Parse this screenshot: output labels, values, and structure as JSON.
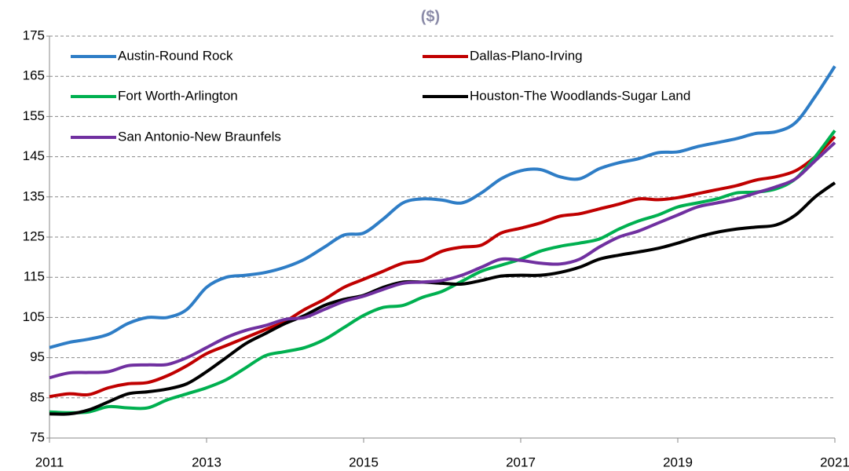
{
  "chart_data": {
    "type": "line",
    "title": "($)",
    "x": [
      2011,
      2011.25,
      2011.5,
      2011.75,
      2012,
      2012.25,
      2012.5,
      2012.75,
      2013,
      2013.25,
      2013.5,
      2013.75,
      2014,
      2014.25,
      2014.5,
      2014.75,
      2015,
      2015.25,
      2015.5,
      2015.75,
      2016,
      2016.25,
      2016.5,
      2016.75,
      2017,
      2017.25,
      2017.5,
      2017.75,
      2018,
      2018.25,
      2018.5,
      2018.75,
      2019,
      2019.25,
      2019.5,
      2019.75,
      2020,
      2020.25,
      2020.5,
      2020.75,
      2021
    ],
    "series": [
      {
        "name": "Austin-Round Rock",
        "color": "#2e7dc6",
        "values": [
          97.5,
          98.8,
          99.6,
          100.8,
          103.5,
          105,
          105,
          107,
          112.5,
          115,
          115.5,
          116.2,
          117.5,
          119.5,
          122.5,
          125.5,
          126,
          129.5,
          133.5,
          134.5,
          134.2,
          133.5,
          136,
          139.5,
          141.5,
          141.8,
          140,
          139.5,
          142,
          143.5,
          144.5,
          146,
          146.2,
          147.5,
          148.5,
          149.5,
          150.8,
          151.2,
          153.5,
          160,
          167.5
        ]
      },
      {
        "name": "Dallas-Plano-Irving",
        "color": "#c00000",
        "values": [
          85.3,
          86,
          85.8,
          87.5,
          88.5,
          88.8,
          90.5,
          93,
          96,
          98,
          100,
          102,
          104,
          107,
          109.5,
          112.5,
          114.5,
          116.5,
          118.5,
          119.2,
          121.5,
          122.5,
          123,
          126,
          127.2,
          128.5,
          130.2,
          130.8,
          132,
          133.2,
          134.5,
          134.3,
          134.8,
          135.8,
          136.8,
          137.8,
          139.2,
          140,
          141.5,
          145,
          150
        ]
      },
      {
        "name": "Fort Worth-Arlington",
        "color": "#00b050",
        "values": [
          81.5,
          81.3,
          81.5,
          82.8,
          82.5,
          82.5,
          84.5,
          86,
          87.5,
          89.5,
          92.5,
          95.5,
          96.5,
          97.5,
          99.5,
          102.5,
          105.5,
          107.5,
          108,
          110,
          111.5,
          114,
          116.5,
          118,
          119.5,
          121.5,
          122.7,
          123.5,
          124.5,
          127,
          129,
          130.5,
          132.5,
          133.5,
          134.5,
          136,
          136.2,
          137,
          139.5,
          145,
          151.5
        ]
      },
      {
        "name": "Houston-The Woodlands-Sugar Land",
        "color": "#000000",
        "values": [
          81,
          81,
          82,
          84,
          86,
          86.5,
          87.2,
          88.5,
          91.5,
          95,
          98.5,
          101,
          103.5,
          105.5,
          108,
          109.5,
          110.5,
          112.5,
          113.8,
          113.8,
          113.5,
          113.3,
          114.2,
          115.3,
          115.5,
          115.5,
          116.2,
          117.5,
          119.5,
          120.5,
          121.3,
          122.2,
          123.5,
          125,
          126.2,
          127,
          127.5,
          128,
          130.5,
          135,
          138.5
        ]
      },
      {
        "name": "San Antonio-New Braunfels",
        "color": "#7030a0",
        "values": [
          90,
          91.2,
          91.3,
          91.5,
          93,
          93.2,
          93.3,
          95,
          97.5,
          100,
          101.8,
          103,
          104.5,
          105,
          107,
          109,
          110.3,
          112,
          113.5,
          113.8,
          114.2,
          115.5,
          117.5,
          119.5,
          119.2,
          118.5,
          118.3,
          119.5,
          122.5,
          125,
          126.5,
          128.5,
          130.5,
          132.5,
          133.5,
          134.5,
          136,
          137.5,
          139.5,
          144,
          148.5
        ]
      }
    ],
    "xlim": [
      2011,
      2021
    ],
    "xticks": [
      2011,
      2013,
      2015,
      2017,
      2019,
      2021
    ],
    "ylim": [
      75,
      175
    ],
    "yticks": [
      75,
      85,
      95,
      105,
      115,
      125,
      135,
      145,
      155,
      165,
      175
    ],
    "grid": true
  }
}
